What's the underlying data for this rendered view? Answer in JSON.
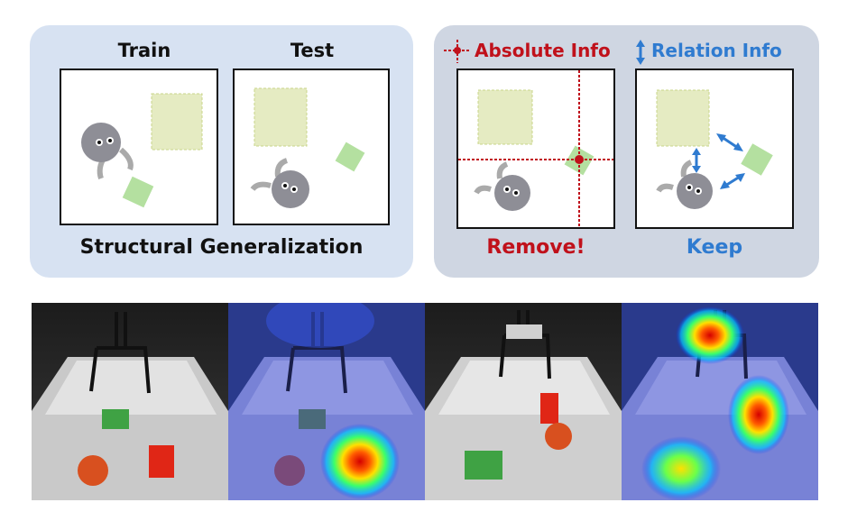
{
  "left_panel": {
    "train_title": "Train",
    "test_title": "Test",
    "caption": "Structural Generalization"
  },
  "right_panel": {
    "absolute_label": "Absolute Info",
    "relation_label": "Relation Info",
    "remove_caption": "Remove!",
    "keep_caption": "Keep"
  },
  "colors": {
    "left_panel_bg": "#d7e2f2",
    "right_panel_bg": "#cfd6e2",
    "absolute_red": "#c0111b",
    "relation_blue": "#2f7bd0",
    "target_yellow": "#e5ebc2",
    "block_green": "#b4e0a0",
    "robot_gray": "#8e8e96"
  },
  "icons": [
    "crosshair-icon",
    "double-arrow-icon",
    "robot-icon"
  ]
}
